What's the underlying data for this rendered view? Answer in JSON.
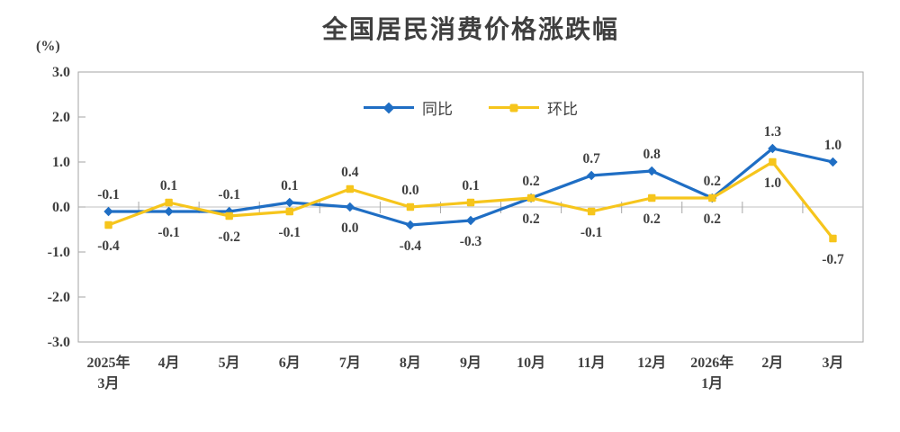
{
  "page": {
    "background": "#ffffff",
    "text_color": "#404040"
  },
  "chart_data": {
    "type": "line",
    "title": "全国居民消费价格涨跌幅",
    "ylabel": "(%)",
    "xlabel": "",
    "ylim": [
      -3.0,
      3.0
    ],
    "ytick_interval": 1.0,
    "ytick_labels": [
      "3.0",
      "2.0",
      "1.0",
      "0.0",
      "-1.0",
      "-2.0",
      "-3.0"
    ],
    "grid": false,
    "legend_position": "top-center",
    "axis_color": "#a6a6a6",
    "zero_line_color": "#c2c2c2",
    "text_color": "#404040",
    "categories": [
      "2025年|3月",
      "4月",
      "5月",
      "6月",
      "7月",
      "8月",
      "9月",
      "10月",
      "11月",
      "12月",
      "2026年|1月",
      "2月",
      "3月"
    ],
    "series": [
      {
        "name": "同比",
        "color": "#1f6ec4",
        "marker": "diamond",
        "values": [
          -0.1,
          -0.1,
          -0.1,
          0.1,
          0.0,
          -0.4,
          -0.3,
          0.2,
          0.7,
          0.8,
          0.2,
          1.3,
          1.0
        ],
        "label_side": [
          "above",
          "below",
          "above",
          "above",
          "below",
          "below",
          "below",
          "above",
          "above",
          "above",
          "above",
          "above",
          "above"
        ]
      },
      {
        "name": "环比",
        "color": "#f6c51c",
        "marker": "square",
        "values": [
          -0.4,
          0.1,
          -0.2,
          -0.1,
          0.4,
          0.0,
          0.1,
          0.2,
          -0.1,
          0.2,
          0.2,
          1.0,
          -0.7
        ],
        "label_side": [
          "below",
          "above",
          "below",
          "below",
          "above",
          "above",
          "above",
          "below",
          "below",
          "below",
          "below",
          "below",
          "below"
        ]
      }
    ]
  }
}
